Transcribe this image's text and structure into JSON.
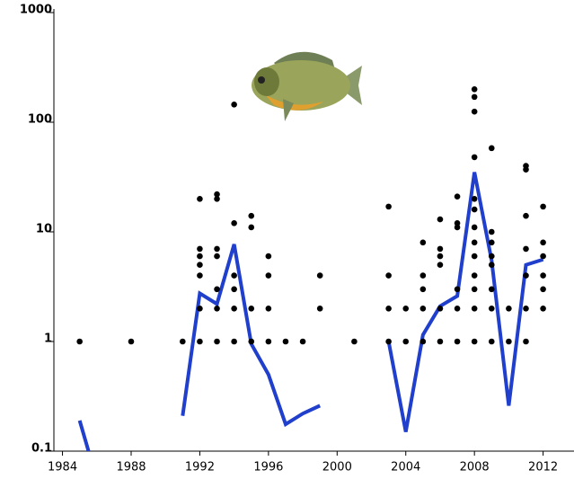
{
  "chart_data": {
    "type": "line",
    "xlim": [
      1983.5,
      2013.8
    ],
    "xticks": [
      1984,
      1988,
      1992,
      1996,
      2000,
      2004,
      2008,
      2012
    ],
    "ylim": [
      0.1,
      1000
    ],
    "yticks": [
      0.1,
      1,
      10,
      100,
      1000
    ],
    "log_y": true,
    "series": [
      {
        "type": "line",
        "color": "#1f3fcc",
        "x": [
          1985,
          1986,
          1987,
          1988,
          1989,
          1990,
          1991,
          1992,
          1993,
          1994,
          1995,
          1996,
          1997,
          1998,
          1999,
          2000,
          2001,
          2002,
          2003,
          2004,
          2005,
          2006,
          2007,
          2008,
          2009,
          2010,
          2011,
          2012
        ],
        "values": [
          0.19,
          0.055,
          null,
          null,
          null,
          null,
          0.21,
          2.75,
          2.2,
          7.7,
          0.95,
          0.5,
          0.176,
          0.22,
          0.26,
          null,
          null,
          null,
          1,
          0.15,
          1.15,
          2.1,
          2.6,
          35,
          5.5,
          0.26,
          5.0,
          5.6
        ]
      },
      {
        "type": "scatter",
        "color": "#000000",
        "x": [
          1985,
          1988,
          1991,
          1992,
          1992,
          1992,
          1992,
          1992,
          1992,
          1992,
          1993,
          1993,
          1993,
          1993,
          1993,
          1993,
          1993,
          1994,
          1994,
          1994,
          1994,
          1994,
          1994,
          1995,
          1995,
          1995,
          1995,
          1996,
          1996,
          1996,
          1996,
          1997,
          1998,
          1999,
          1999,
          2001,
          2003,
          2003,
          2003,
          2003,
          2004,
          2004,
          2005,
          2005,
          2005,
          2005,
          2005,
          2006,
          2006,
          2006,
          2006,
          2006,
          2006,
          2007,
          2007,
          2007,
          2007,
          2007,
          2007,
          2008,
          2008,
          2008,
          2008,
          2008,
          2008,
          2008,
          2008,
          2008,
          2008,
          2008,
          2008,
          2008,
          2009,
          2009,
          2009,
          2009,
          2009,
          2009,
          2009,
          2009,
          2010,
          2010,
          2011,
          2011,
          2011,
          2011,
          2011,
          2011,
          2011,
          2012,
          2012,
          2012,
          2012,
          2012,
          2012
        ],
        "values": [
          1,
          1,
          1,
          1,
          2,
          4,
          5,
          6,
          7,
          20,
          1,
          2,
          3,
          6,
          7,
          20,
          22,
          1,
          2,
          3,
          4,
          12,
          145,
          1,
          2,
          11,
          14,
          1,
          2,
          4,
          6,
          1,
          1,
          2,
          4,
          1,
          1,
          2,
          4,
          17,
          1,
          2,
          1,
          2,
          3,
          4,
          8,
          1,
          2,
          5,
          6,
          7,
          13,
          1,
          2,
          3,
          11,
          12,
          21,
          1,
          2,
          3,
          4,
          6,
          8,
          11,
          16,
          20,
          48,
          125,
          170,
          200,
          1,
          2,
          3,
          5,
          6,
          8,
          10,
          58,
          1,
          2,
          1,
          2,
          4,
          7,
          14,
          37,
          40,
          2,
          3,
          4,
          6,
          8,
          17
        ]
      }
    ]
  }
}
